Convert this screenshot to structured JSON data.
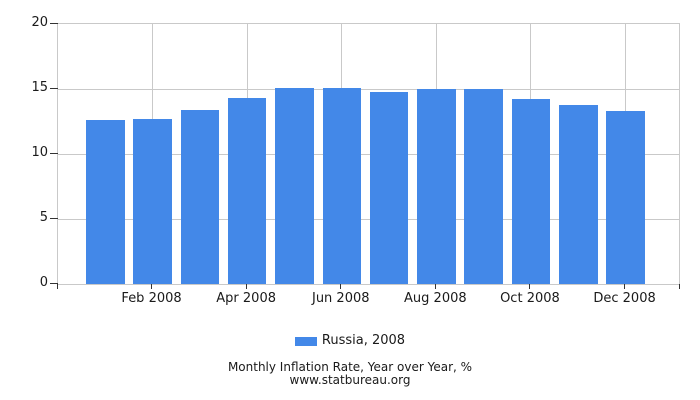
{
  "chart": {
    "legend_label": "Russia, 2008",
    "title": "Monthly Inflation Rate, Year over Year, %",
    "subtitle": "www.statbureau.org"
  },
  "chart_data": {
    "type": "bar",
    "title": "Monthly Inflation Rate, Year over Year, %",
    "subtitle": "www.statbureau.org",
    "series": [
      {
        "name": "Russia, 2008",
        "values": [
          12.6,
          12.7,
          13.4,
          14.3,
          15.1,
          15.1,
          14.8,
          15.0,
          15.0,
          14.2,
          13.8,
          13.3
        ]
      }
    ],
    "n_bars": 12,
    "x_tick_labels": [
      "Feb 2008",
      "Apr 2008",
      "Jun 2008",
      "Aug 2008",
      "Oct 2008",
      "Dec 2008"
    ],
    "x_tick_bar_indexes": [
      1,
      3,
      5,
      7,
      9,
      11
    ],
    "ylim": [
      0,
      20
    ],
    "y_ticks": [
      0,
      5,
      10,
      15,
      20
    ],
    "grid": true,
    "legend_position": "bottom",
    "colors": {
      "bar": "#4388E8",
      "grid": "#C9C9C9",
      "tick": "#333333",
      "text": "#1A1A1A"
    }
  }
}
